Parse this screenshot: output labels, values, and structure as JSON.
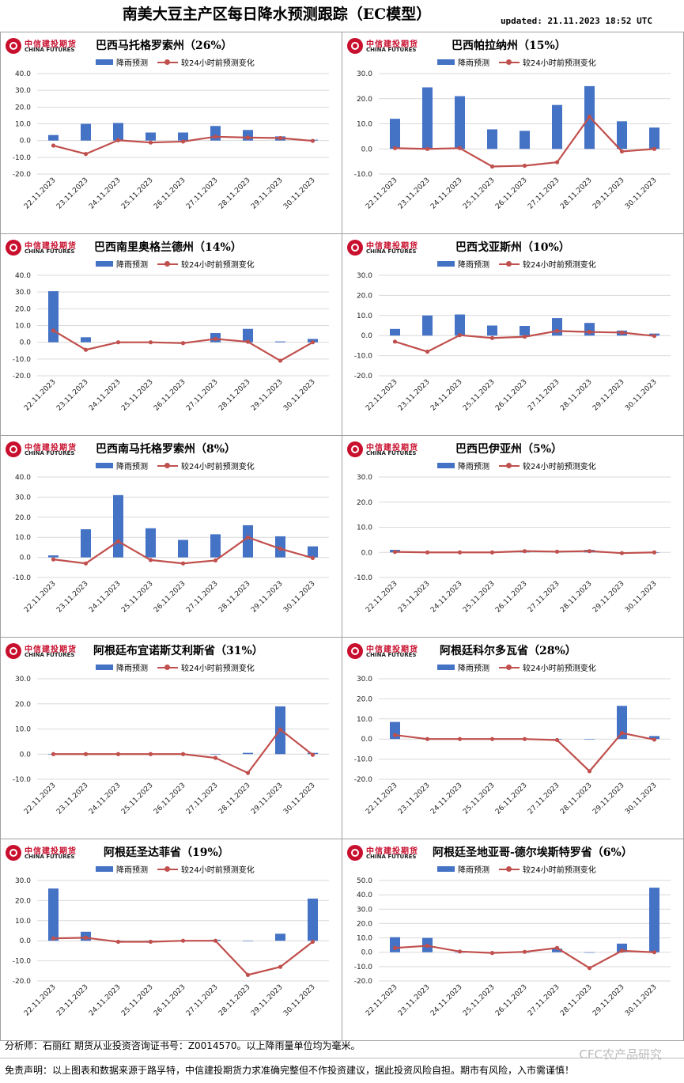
{
  "header": {
    "title": "南美大豆主产区每日降水预测跟踪（EC模型）",
    "updated": "updated:  21.11.2023 18:52 UTC"
  },
  "logo": {
    "cn": "中信建投期货",
    "en": "CHINA FUTURES"
  },
  "legend": {
    "bar": "降雨预测",
    "line": "较24小时前预测变化"
  },
  "colors": {
    "bar": "#4472c4",
    "line": "#c0504d",
    "grid": "#d9d9d9"
  },
  "chart_data": [
    {
      "type": "bar",
      "title": "巴西马托格罗索州（26%）",
      "categories": [
        "22.11.2023",
        "23.11.2023",
        "24.11.2023",
        "25.11.2023",
        "26.11.2023",
        "27.11.2023",
        "28.11.2023",
        "29.11.2023",
        "30.11.2023"
      ],
      "ylim": [
        -20,
        40
      ],
      "yticks": [
        "-20.0",
        "-10.0",
        "0.0",
        "10.0",
        "20.0",
        "30.0",
        "40.0"
      ],
      "series": [
        {
          "name": "降雨预测",
          "type": "bar",
          "values": [
            3.3,
            10.0,
            10.5,
            4.8,
            4.8,
            8.7,
            6.3,
            2.5,
            0.5
          ]
        },
        {
          "name": "较24小时前预测变化",
          "type": "line",
          "values": [
            -3.0,
            -8.0,
            0.2,
            -1.2,
            -0.6,
            2.3,
            1.8,
            1.5,
            -0.2
          ]
        }
      ]
    },
    {
      "type": "bar",
      "title": "巴西帕拉纳州（15%）",
      "categories": [
        "22.11.2023",
        "23.11.2023",
        "24.11.2023",
        "25.11.2023",
        "26.11.2023",
        "27.11.2023",
        "28.11.2023",
        "29.11.2023",
        "30.11.2023"
      ],
      "ylim": [
        -10,
        30
      ],
      "yticks": [
        "-10.0",
        "0.0",
        "10.0",
        "20.0",
        "30.0"
      ],
      "series": [
        {
          "name": "降雨预测",
          "type": "bar",
          "values": [
            12.0,
            24.5,
            21.0,
            7.8,
            7.2,
            17.5,
            25.0,
            11.0,
            8.5
          ]
        },
        {
          "name": "较24小时前预测变化",
          "type": "line",
          "values": [
            0.3,
            0.0,
            0.3,
            -7.0,
            -6.7,
            -5.3,
            12.8,
            -1.0,
            0.0
          ]
        }
      ]
    },
    {
      "type": "bar",
      "title": "巴西南里奥格兰德州（14%）",
      "categories": [
        "22.11.2023",
        "23.11.2023",
        "24.11.2023",
        "25.11.2023",
        "26.11.2023",
        "27.11.2023",
        "28.11.2023",
        "29.11.2023",
        "30.11.2023"
      ],
      "ylim": [
        -20,
        40
      ],
      "yticks": [
        "-20.0",
        "-10.0",
        "0.0",
        "10.0",
        "20.0",
        "30.0",
        "40.0"
      ],
      "series": [
        {
          "name": "降雨预测",
          "type": "bar",
          "values": [
            30.5,
            3.0,
            0.0,
            0.0,
            0.0,
            5.5,
            8.0,
            0.5,
            2.0
          ]
        },
        {
          "name": "较24小时前预测变化",
          "type": "line",
          "values": [
            7.0,
            -4.5,
            0.0,
            0.0,
            -0.5,
            2.0,
            0.3,
            -11.0,
            0.0
          ]
        }
      ]
    },
    {
      "type": "bar",
      "title": "巴西戈亚斯州（10%）",
      "categories": [
        "22.11.2023",
        "23.11.2023",
        "24.11.2023",
        "25.11.2023",
        "26.11.2023",
        "27.11.2023",
        "28.11.2023",
        "29.11.2023",
        "30.11.2023"
      ],
      "ylim": [
        -20,
        30
      ],
      "yticks": [
        "-20.0",
        "-10.0",
        "0.0",
        "10.0",
        "20.0",
        "30.0"
      ],
      "series": [
        {
          "name": "降雨预测",
          "type": "bar",
          "values": [
            3.3,
            10.0,
            10.5,
            5.0,
            4.8,
            8.7,
            6.3,
            2.5,
            1.0
          ]
        },
        {
          "name": "较24小时前预测变化",
          "type": "line",
          "values": [
            -3.0,
            -8.0,
            0.2,
            -1.2,
            -0.6,
            2.3,
            1.8,
            1.5,
            -0.2
          ]
        }
      ]
    },
    {
      "type": "bar",
      "title": "巴西南马托格罗索州（8%）",
      "categories": [
        "22.11.2023",
        "23.11.2023",
        "24.11.2023",
        "25.11.2023",
        "26.11.2023",
        "27.11.2023",
        "28.11.2023",
        "29.11.2023",
        "30.11.2023"
      ],
      "ylim": [
        -10,
        40
      ],
      "yticks": [
        "-10.0",
        "0.0",
        "10.0",
        "20.0",
        "30.0",
        "40.0"
      ],
      "series": [
        {
          "name": "降雨预测",
          "type": "bar",
          "values": [
            1.0,
            14.0,
            31.0,
            14.5,
            8.7,
            11.5,
            16.0,
            10.5,
            5.5
          ]
        },
        {
          "name": "较24小时前预测变化",
          "type": "line",
          "values": [
            -1.0,
            -3.0,
            8.0,
            -1.3,
            -3.0,
            -1.5,
            10.0,
            4.3,
            -0.3
          ]
        }
      ]
    },
    {
      "type": "bar",
      "title": "巴西巴伊亚州（5%）",
      "categories": [
        "22.11.2023",
        "23.11.2023",
        "24.11.2023",
        "25.11.2023",
        "26.11.2023",
        "27.11.2023",
        "28.11.2023",
        "29.11.2023",
        "30.11.2023"
      ],
      "ylim": [
        -10,
        30
      ],
      "yticks": [
        "-10.0",
        "0.0",
        "10.0",
        "20.0",
        "30.0"
      ],
      "series": [
        {
          "name": "降雨预测",
          "type": "bar",
          "values": [
            1.0,
            0.0,
            0.0,
            0.0,
            0.5,
            0.5,
            1.0,
            0.0,
            0.0
          ]
        },
        {
          "name": "较24小时前预测变化",
          "type": "line",
          "values": [
            0.2,
            0.0,
            0.0,
            0.0,
            0.5,
            0.3,
            0.5,
            -0.3,
            0.0
          ]
        }
      ]
    },
    {
      "type": "bar",
      "title": "阿根廷布宜诺斯艾利斯省（31%）",
      "categories": [
        "22.11.2023",
        "23.11.2023",
        "24.11.2023",
        "25.11.2023",
        "26.11.2023",
        "27.11.2023",
        "28.11.2023",
        "29.11.2023",
        "30.11.2023"
      ],
      "ylim": [
        -10,
        30
      ],
      "yticks": [
        "-10.0",
        "0.0",
        "10.0",
        "20.0",
        "30.0"
      ],
      "series": [
        {
          "name": "降雨预测",
          "type": "bar",
          "values": [
            0.0,
            0.0,
            0.0,
            0.0,
            0.0,
            0.0,
            0.5,
            19.0,
            0.5
          ]
        },
        {
          "name": "较24小时前预测变化",
          "type": "line",
          "values": [
            0.0,
            0.0,
            0.0,
            0.0,
            0.0,
            -1.5,
            -7.5,
            9.8,
            -0.3
          ]
        }
      ]
    },
    {
      "type": "bar",
      "title": "阿根廷科尔多瓦省（28%）",
      "categories": [
        "22.11.2023",
        "23.11.2023",
        "24.11.2023",
        "25.11.2023",
        "26.11.2023",
        "27.11.2023",
        "28.11.2023",
        "29.11.2023",
        "30.11.2023"
      ],
      "ylim": [
        -20,
        30
      ],
      "yticks": [
        "-20.0",
        "-10.0",
        "0.0",
        "10.0",
        "20.0",
        "30.0"
      ],
      "series": [
        {
          "name": "降雨预测",
          "type": "bar",
          "values": [
            8.5,
            0.0,
            0.0,
            0.0,
            0.0,
            0.0,
            0.0,
            16.5,
            1.5
          ]
        },
        {
          "name": "较24小时前预测变化",
          "type": "line",
          "values": [
            2.0,
            0.0,
            0.0,
            0.0,
            0.0,
            -0.5,
            -16.0,
            3.0,
            -0.3
          ]
        }
      ]
    },
    {
      "type": "bar",
      "title": "阿根廷圣达菲省（19%）",
      "categories": [
        "22.11.2023",
        "23.11.2023",
        "24.11.2023",
        "25.11.2023",
        "26.11.2023",
        "27.11.2023",
        "28.11.2023",
        "29.11.2023",
        "30.11.2023"
      ],
      "ylim": [
        -20,
        30
      ],
      "yticks": [
        "-20.0",
        "-10.0",
        "0.0",
        "10.0",
        "20.0",
        "30.0"
      ],
      "series": [
        {
          "name": "降雨预测",
          "type": "bar",
          "values": [
            26.0,
            4.5,
            0.0,
            0.0,
            0.0,
            0.5,
            0.0,
            3.5,
            21.0
          ]
        },
        {
          "name": "较24小时前预测变化",
          "type": "line",
          "values": [
            1.2,
            1.5,
            -0.5,
            -0.5,
            0.0,
            0.0,
            -17.0,
            -13.0,
            -0.5
          ]
        }
      ]
    },
    {
      "type": "bar",
      "title": "阿根廷圣地亚哥-德尔埃斯特罗省（6%）",
      "categories": [
        "22.11.2023",
        "23.11.2023",
        "24.11.2023",
        "25.11.2023",
        "26.11.2023",
        "27.11.2023",
        "28.11.2023",
        "29.11.2023",
        "30.11.2023"
      ],
      "ylim": [
        -20,
        50
      ],
      "yticks": [
        "-20.0",
        "-10.0",
        "0.0",
        "10.0",
        "20.0",
        "30.0",
        "40.0",
        "50.0"
      ],
      "series": [
        {
          "name": "降雨预测",
          "type": "bar",
          "values": [
            10.5,
            10.0,
            0.0,
            0.0,
            0.0,
            2.5,
            0.0,
            6.0,
            45.0
          ]
        },
        {
          "name": "较24小时前预测变化",
          "type": "line",
          "values": [
            3.0,
            4.5,
            0.5,
            -0.5,
            0.3,
            3.0,
            -11.0,
            1.0,
            0.0
          ]
        }
      ]
    }
  ],
  "footer": {
    "analyst": "分析师：石丽红    期货从业投资咨询证书号：Z0014570。以上降雨量单位均为毫米。",
    "disclaimer": "免责声明：以上图表和数据来源于路孚特，中信建投期货力求准确完整但不作投资建议，据此投资风险自担。期市有风险，入市需谨慎！",
    "watermark": "CFC农产品研究"
  }
}
